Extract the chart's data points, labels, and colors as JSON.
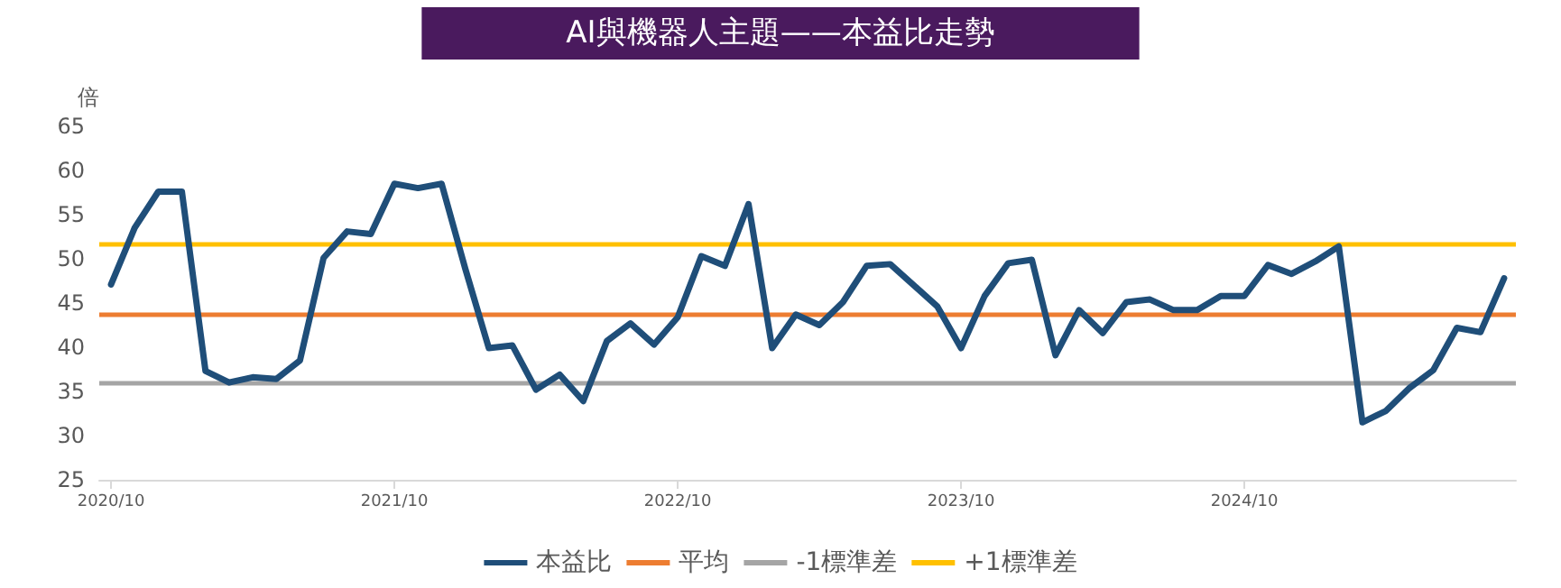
{
  "chart_data": {
    "type": "line",
    "title": "AI與機器人主題——本益比走勢",
    "ylabel": "倍",
    "categories": [
      "2020/10",
      null,
      null,
      null,
      null,
      null,
      null,
      null,
      null,
      null,
      null,
      null,
      "2021/10",
      null,
      null,
      null,
      null,
      null,
      null,
      null,
      null,
      null,
      null,
      null,
      "2022/10",
      null,
      null,
      null,
      null,
      null,
      null,
      null,
      null,
      null,
      null,
      null,
      "2023/10",
      null,
      null,
      null,
      null,
      null,
      null,
      null,
      null,
      null,
      null,
      null,
      "2024/10",
      null,
      null,
      null,
      null,
      null,
      null,
      null,
      null,
      null,
      null,
      null
    ],
    "series": [
      {
        "name": "本益比",
        "color": "#1f4e79",
        "values": [
          47.1,
          53.5,
          57.6,
          57.6,
          37.3,
          36.0,
          36.6,
          36.4,
          38.5,
          50.1,
          53.1,
          52.8,
          58.5,
          58.0,
          58.5,
          48.9,
          39.9,
          40.2,
          35.2,
          36.9,
          33.9,
          40.7,
          42.7,
          40.3,
          43.4,
          50.3,
          49.2,
          56.2,
          39.9,
          43.7,
          42.5,
          45.1,
          49.2,
          49.4,
          47.0,
          44.6,
          39.9,
          45.8,
          49.5,
          49.9,
          39.1,
          44.2,
          41.6,
          45.1,
          45.4,
          44.2,
          44.2,
          45.8,
          45.8,
          49.3,
          48.3,
          49.7,
          51.4,
          31.5,
          32.8,
          35.4,
          37.4,
          42.2,
          41.7,
          47.8
        ]
      }
    ],
    "ref_lines": [
      {
        "axis": "y",
        "value": 43.7,
        "label": "平均",
        "color": "#ed7d31"
      },
      {
        "axis": "y",
        "value": 36.0,
        "label": "-1標準差",
        "color": "#a5a5a5"
      },
      {
        "axis": "y",
        "value": 51.6,
        "label": "+1標準差",
        "color": "#ffc000"
      }
    ],
    "ylim": [
      25,
      65
    ],
    "yticks": [
      25,
      30,
      35,
      40,
      45,
      50,
      55,
      60,
      65
    ],
    "grid": false,
    "legend": "bottom",
    "marker": "none",
    "line_style": "solid"
  }
}
